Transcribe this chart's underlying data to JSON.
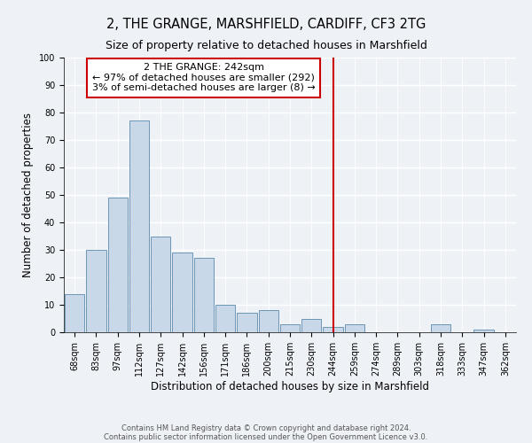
{
  "title": "2, THE GRANGE, MARSHFIELD, CARDIFF, CF3 2TG",
  "subtitle": "Size of property relative to detached houses in Marshfield",
  "xlabel": "Distribution of detached houses by size in Marshfield",
  "ylabel": "Number of detached properties",
  "bar_color": "#c8d8e8",
  "bar_edge_color": "#5a8aaa",
  "background_color": "#eef2f7",
  "grid_color": "#ffffff",
  "bin_labels": [
    "68sqm",
    "83sqm",
    "97sqm",
    "112sqm",
    "127sqm",
    "142sqm",
    "156sqm",
    "171sqm",
    "186sqm",
    "200sqm",
    "215sqm",
    "230sqm",
    "244sqm",
    "259sqm",
    "274sqm",
    "289sqm",
    "303sqm",
    "318sqm",
    "333sqm",
    "347sqm",
    "362sqm"
  ],
  "bar_heights": [
    14,
    30,
    49,
    77,
    35,
    29,
    27,
    10,
    7,
    8,
    3,
    5,
    2,
    3,
    0,
    0,
    0,
    3,
    0,
    1,
    0
  ],
  "vline_x_idx": 12,
  "vline_color": "#cc0000",
  "annotation_title": "2 THE GRANGE: 242sqm",
  "annotation_line1": "← 97% of detached houses are smaller (292)",
  "annotation_line2": "3% of semi-detached houses are larger (8) →",
  "annotation_box_color": "#cc0000",
  "ylim": [
    0,
    100
  ],
  "yticks": [
    0,
    10,
    20,
    30,
    40,
    50,
    60,
    70,
    80,
    90,
    100
  ],
  "footnote1": "Contains HM Land Registry data © Crown copyright and database right 2024.",
  "footnote2": "Contains public sector information licensed under the Open Government Licence v3.0.",
  "title_fontsize": 10.5,
  "subtitle_fontsize": 9,
  "axis_label_fontsize": 8.5,
  "tick_fontsize": 7,
  "annotation_fontsize": 8,
  "footnote_fontsize": 6
}
